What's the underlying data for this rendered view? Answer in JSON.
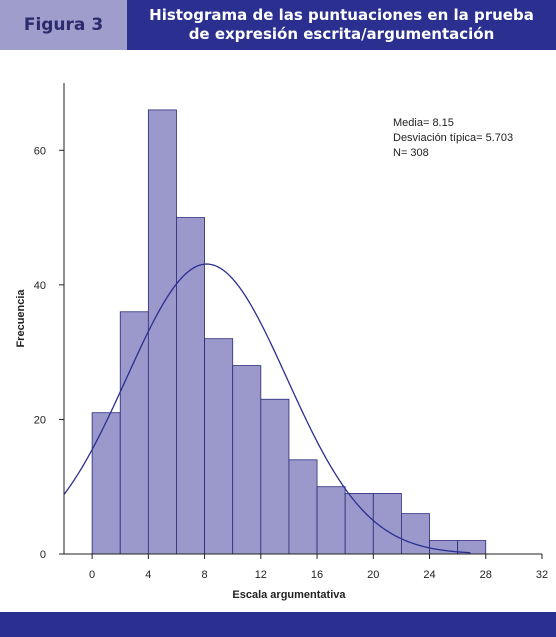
{
  "header": {
    "figure_label": "Figura 3",
    "title_line1": "Histograma de las puntuaciones en la prueba",
    "title_line2": "de expresión escrita/argumentación"
  },
  "colors": {
    "bar_fill": "#9b99cc",
    "bar_stroke": "#2a2a7a",
    "curve": "#2b2f8f",
    "header_light": "#9f9dcc",
    "header_dark": "#2b2f8f"
  },
  "chart_data": {
    "type": "bar",
    "xlabel": "Escala argumentativa",
    "ylabel": "Frecuencia",
    "xlim": [
      -2,
      32
    ],
    "ylim": [
      0,
      70
    ],
    "xticks": [
      0,
      4,
      8,
      12,
      16,
      20,
      24,
      28,
      32
    ],
    "yticks": [
      0,
      20,
      40,
      60
    ],
    "bins": [
      {
        "x0": 0,
        "x1": 2,
        "count": 21
      },
      {
        "x0": 2,
        "x1": 4,
        "count": 36
      },
      {
        "x0": 4,
        "x1": 6,
        "count": 66
      },
      {
        "x0": 6,
        "x1": 8,
        "count": 50
      },
      {
        "x0": 8,
        "x1": 10,
        "count": 32
      },
      {
        "x0": 10,
        "x1": 12,
        "count": 28
      },
      {
        "x0": 12,
        "x1": 14,
        "count": 23
      },
      {
        "x0": 14,
        "x1": 16,
        "count": 14
      },
      {
        "x0": 16,
        "x1": 18,
        "count": 10
      },
      {
        "x0": 18,
        "x1": 20,
        "count": 9
      },
      {
        "x0": 20,
        "x1": 22,
        "count": 9
      },
      {
        "x0": 22,
        "x1": 24,
        "count": 6
      },
      {
        "x0": 24,
        "x1": 26,
        "count": 2
      },
      {
        "x0": 26,
        "x1": 28,
        "count": 2
      }
    ],
    "normal_curve": {
      "mean": 8.15,
      "sd": 5.703,
      "n": 308,
      "bin_width": 2
    },
    "annotations": [
      "Media= 8.15",
      "Desviación típica= 5.703",
      "N= 308"
    ]
  }
}
